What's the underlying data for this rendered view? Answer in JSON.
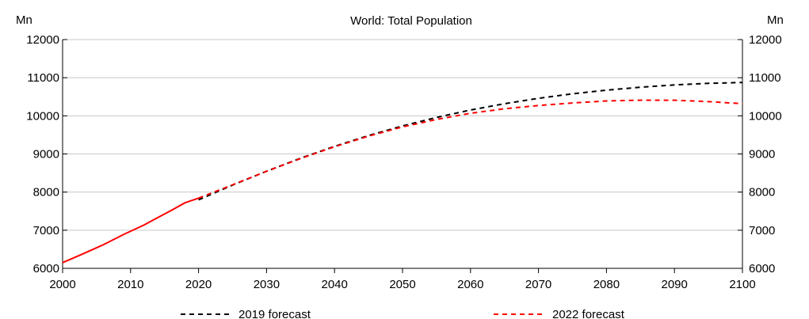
{
  "chart_data": {
    "type": "line",
    "title": "World: Total Population",
    "left_unit": "Mn",
    "right_unit": "Mn",
    "xlim": [
      2000,
      2100
    ],
    "ylim": [
      6000,
      12000
    ],
    "x_ticks": [
      "2000",
      "2010",
      "2020",
      "2030",
      "2040",
      "2050",
      "2060",
      "2070",
      "2080",
      "2090",
      "2100"
    ],
    "y_ticks": [
      "6000",
      "7000",
      "8000",
      "9000",
      "10000",
      "11000",
      "12000"
    ],
    "grid": "horizontal",
    "legend_position": "bottom",
    "series": [
      {
        "name": "2019 forecast",
        "color": "#000000",
        "dash": true,
        "points": [
          [
            2020,
            7795
          ],
          [
            2025,
            8184
          ],
          [
            2030,
            8548
          ],
          [
            2035,
            8887
          ],
          [
            2040,
            9199
          ],
          [
            2045,
            9482
          ],
          [
            2050,
            9735
          ],
          [
            2055,
            9958
          ],
          [
            2060,
            10152
          ],
          [
            2065,
            10318
          ],
          [
            2070,
            10459
          ],
          [
            2075,
            10577
          ],
          [
            2080,
            10674
          ],
          [
            2085,
            10750
          ],
          [
            2090,
            10810
          ],
          [
            2095,
            10852
          ],
          [
            2100,
            10875
          ]
        ]
      },
      {
        "name": "2022 forecast",
        "color": "#ff0000",
        "dash": true,
        "points": [
          [
            2000,
            6149
          ],
          [
            2003,
            6380
          ],
          [
            2006,
            6620
          ],
          [
            2009,
            6890
          ],
          [
            2012,
            7140
          ],
          [
            2014,
            7330
          ],
          [
            2016,
            7520
          ],
          [
            2018,
            7720
          ],
          [
            2020,
            7841
          ],
          [
            2025,
            8191
          ],
          [
            2030,
            8546
          ],
          [
            2035,
            8879
          ],
          [
            2040,
            9188
          ],
          [
            2045,
            9467
          ],
          [
            2050,
            9709
          ],
          [
            2055,
            9906
          ],
          [
            2060,
            10067
          ],
          [
            2065,
            10186
          ],
          [
            2070,
            10270
          ],
          [
            2075,
            10336
          ],
          [
            2080,
            10392
          ],
          [
            2085,
            10410
          ],
          [
            2090,
            10410
          ],
          [
            2095,
            10372
          ],
          [
            2100,
            10320
          ]
        ]
      }
    ]
  }
}
